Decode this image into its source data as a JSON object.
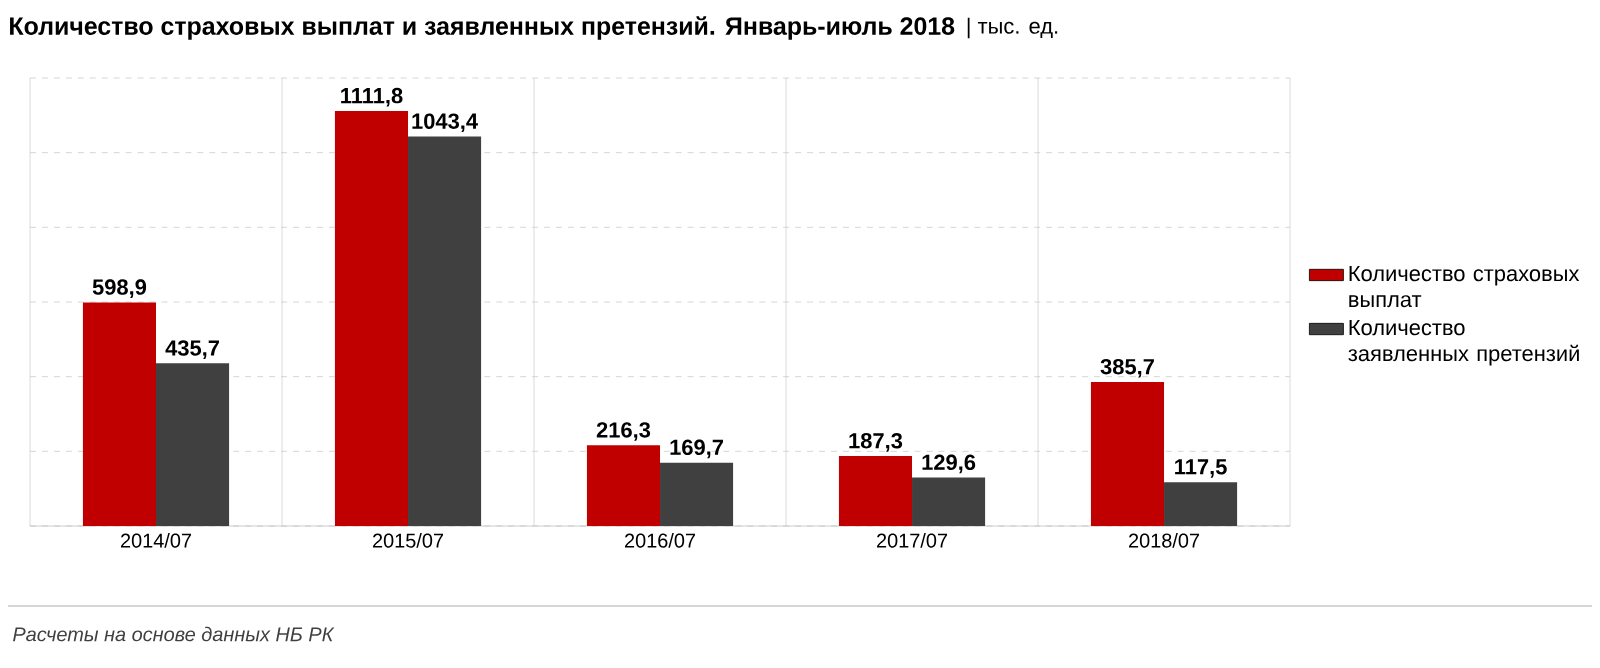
{
  "chart_data": {
    "type": "bar",
    "title": "Количество страховых выплат и заявленных претензий. Январь-июль 2018",
    "subtitle": "| тыс. ед.",
    "categories": [
      "2014/07",
      "2015/07",
      "2016/07",
      "2017/07",
      "2018/07"
    ],
    "series": [
      {
        "name": "Количество страховых выплат",
        "color": "#c00000",
        "values": [
          598.9,
          1111.8,
          216.3,
          187.3,
          385.7
        ],
        "value_labels": [
          "598,9",
          "1111,8",
          "216,3",
          "187,3",
          "385,7"
        ]
      },
      {
        "name": "Количество заявленных претензий",
        "color": "#404040",
        "values": [
          435.7,
          1043.4,
          169.7,
          129.6,
          117.5
        ],
        "value_labels": [
          "435,7",
          "1043,4",
          "169,7",
          "129,6",
          "117,5"
        ]
      }
    ],
    "ylim": [
      0,
      1200
    ],
    "tick_labels": "x",
    "grid": true,
    "legend": "right",
    "annotations": [
      "Расчеты на основе данных НБ РК"
    ]
  }
}
